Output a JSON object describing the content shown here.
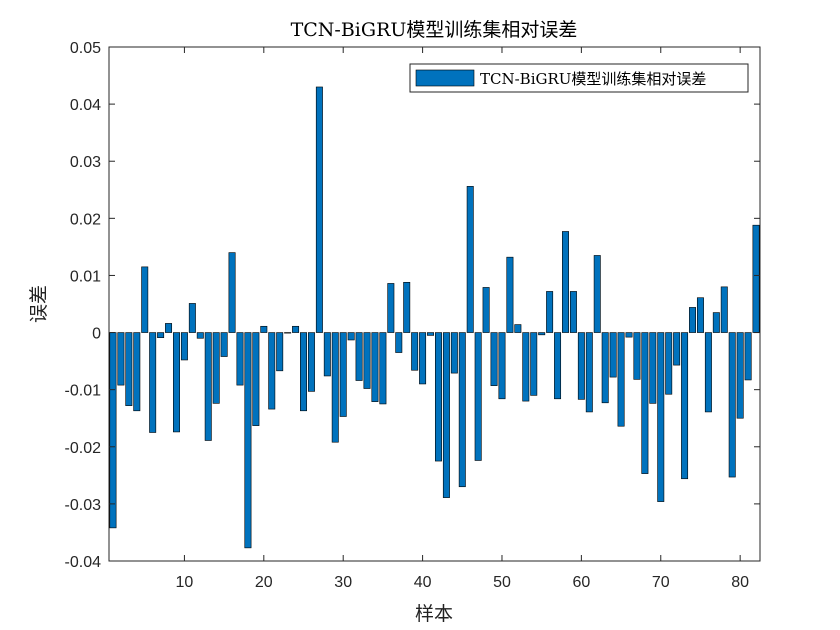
{
  "chart_data": {
    "type": "bar",
    "title": "TCN-BiGRU模型训练集相对误差",
    "xlabel": "样本",
    "ylabel": "误差",
    "xlim": [
      0.5,
      82.5
    ],
    "ylim": [
      -0.04,
      0.05
    ],
    "xticks": [
      10,
      20,
      30,
      40,
      50,
      60,
      70,
      80
    ],
    "yticks": [
      -0.04,
      -0.03,
      -0.02,
      -0.01,
      0,
      0.01,
      0.02,
      0.03,
      0.04,
      0.05
    ],
    "ytick_labels": [
      "-0.04",
      "-0.03",
      "-0.02",
      "-0.01",
      "0",
      "0.01",
      "0.02",
      "0.03",
      "0.04",
      "0.05"
    ],
    "legend_position": "top-right",
    "grid": false,
    "series": [
      {
        "name": "TCN-BiGRU模型训练集相对误差",
        "color": "#0072BD",
        "x": [
          1,
          2,
          3,
          4,
          5,
          6,
          7,
          8,
          9,
          10,
          11,
          12,
          13,
          14,
          15,
          16,
          17,
          18,
          19,
          20,
          21,
          22,
          23,
          24,
          25,
          26,
          27,
          28,
          29,
          30,
          31,
          32,
          33,
          34,
          35,
          36,
          37,
          38,
          39,
          40,
          41,
          42,
          43,
          44,
          45,
          46,
          47,
          48,
          49,
          50,
          51,
          52,
          53,
          54,
          55,
          56,
          57,
          58,
          59,
          60,
          61,
          62,
          63,
          64,
          65,
          66,
          67,
          68,
          69,
          70,
          71,
          72,
          73,
          74,
          75,
          76,
          77,
          78,
          79,
          80,
          81,
          82
        ],
        "values": [
          -0.0342,
          -0.0092,
          -0.0128,
          -0.0137,
          0.0115,
          -0.0175,
          -0.0009,
          0.0016,
          -0.0174,
          -0.0048,
          0.0051,
          -0.001,
          -0.0189,
          -0.0124,
          -0.0042,
          0.014,
          -0.0092,
          -0.0377,
          -0.0163,
          0.0011,
          -0.0134,
          -0.0067,
          -0.0001,
          0.0011,
          -0.0137,
          -0.0103,
          0.043,
          -0.0076,
          -0.0192,
          -0.0147,
          -0.0013,
          -0.0084,
          -0.0098,
          -0.0121,
          -0.0125,
          0.0086,
          -0.0035,
          0.0088,
          -0.0066,
          -0.009,
          -0.0005,
          -0.0225,
          -0.0289,
          -0.0071,
          -0.027,
          0.0256,
          -0.0224,
          0.0079,
          -0.0093,
          -0.0116,
          0.0132,
          0.0014,
          -0.012,
          -0.011,
          -0.0004,
          0.0072,
          -0.0116,
          0.0177,
          0.0072,
          -0.0117,
          -0.0139,
          0.0135,
          -0.0123,
          -0.0078,
          -0.0164,
          -0.0008,
          -0.0082,
          -0.0247,
          -0.0124,
          -0.0296,
          -0.0108,
          -0.0057,
          -0.0256,
          0.0044,
          0.0061,
          -0.0139,
          0.0035,
          0.008,
          -0.0253,
          -0.015,
          -0.0083,
          0.0188
        ]
      }
    ]
  }
}
